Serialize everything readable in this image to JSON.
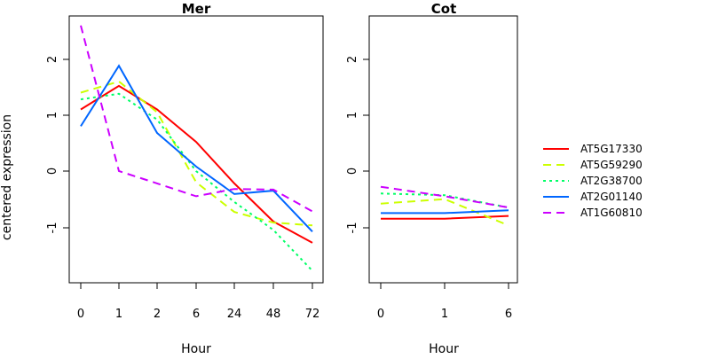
{
  "figure": {
    "ylabel": "centered expression"
  },
  "chart_data": [
    {
      "type": "line",
      "title": "Mer",
      "xlabel": "Hour",
      "categories": [
        "0",
        "1",
        "2",
        "6",
        "24",
        "48",
        "72"
      ],
      "yticks": [
        "-1",
        "0",
        "1",
        "2"
      ],
      "ylim": [
        -2,
        2.6
      ],
      "series": [
        {
          "name": "AT5G17330",
          "values": [
            1.1,
            1.52,
            1.1,
            0.52,
            -0.22,
            -0.9,
            -1.28
          ]
        },
        {
          "name": "AT5G59290",
          "values": [
            1.4,
            1.6,
            1.05,
            -0.2,
            -0.73,
            -0.92,
            -0.97
          ]
        },
        {
          "name": "AT2G38700",
          "values": [
            1.28,
            1.38,
            0.92,
            0.0,
            -0.55,
            -1.05,
            -1.78
          ]
        },
        {
          "name": "AT2G01140",
          "values": [
            0.8,
            1.88,
            0.68,
            0.08,
            -0.41,
            -0.35,
            -1.08
          ]
        },
        {
          "name": "AT1G60810",
          "values": [
            2.6,
            0.0,
            -0.22,
            -0.45,
            -0.32,
            -0.33,
            -0.72
          ]
        }
      ]
    },
    {
      "type": "line",
      "title": "Cot",
      "xlabel": "Hour",
      "categories": [
        "0",
        "1",
        "6"
      ],
      "yticks": [
        "-1",
        "0",
        "1",
        "2"
      ],
      "ylim": [
        -2,
        2.6
      ],
      "series": [
        {
          "name": "AT5G17330",
          "values": [
            -0.85,
            -0.85,
            -0.8
          ]
        },
        {
          "name": "AT5G59290",
          "values": [
            -0.58,
            -0.5,
            -0.97
          ]
        },
        {
          "name": "AT2G38700",
          "values": [
            -0.4,
            -0.43,
            -0.65
          ]
        },
        {
          "name": "AT2G01140",
          "values": [
            -0.75,
            -0.75,
            -0.7
          ]
        },
        {
          "name": "AT1G60810",
          "values": [
            -0.28,
            -0.45,
            -0.65
          ]
        }
      ]
    }
  ],
  "legend": {
    "placement": "right",
    "entries": [
      {
        "label": "AT5G17330",
        "color": "#ff0000",
        "dash": "solid"
      },
      {
        "label": "AT5G59290",
        "color": "#ccff00",
        "dash": "dashed"
      },
      {
        "label": "AT2G38700",
        "color": "#00ff66",
        "dash": "dotted"
      },
      {
        "label": "AT2G01140",
        "color": "#0066ff",
        "dash": "solid"
      },
      {
        "label": "AT1G60810",
        "color": "#cc00ff",
        "dash": "dashed"
      }
    ]
  }
}
